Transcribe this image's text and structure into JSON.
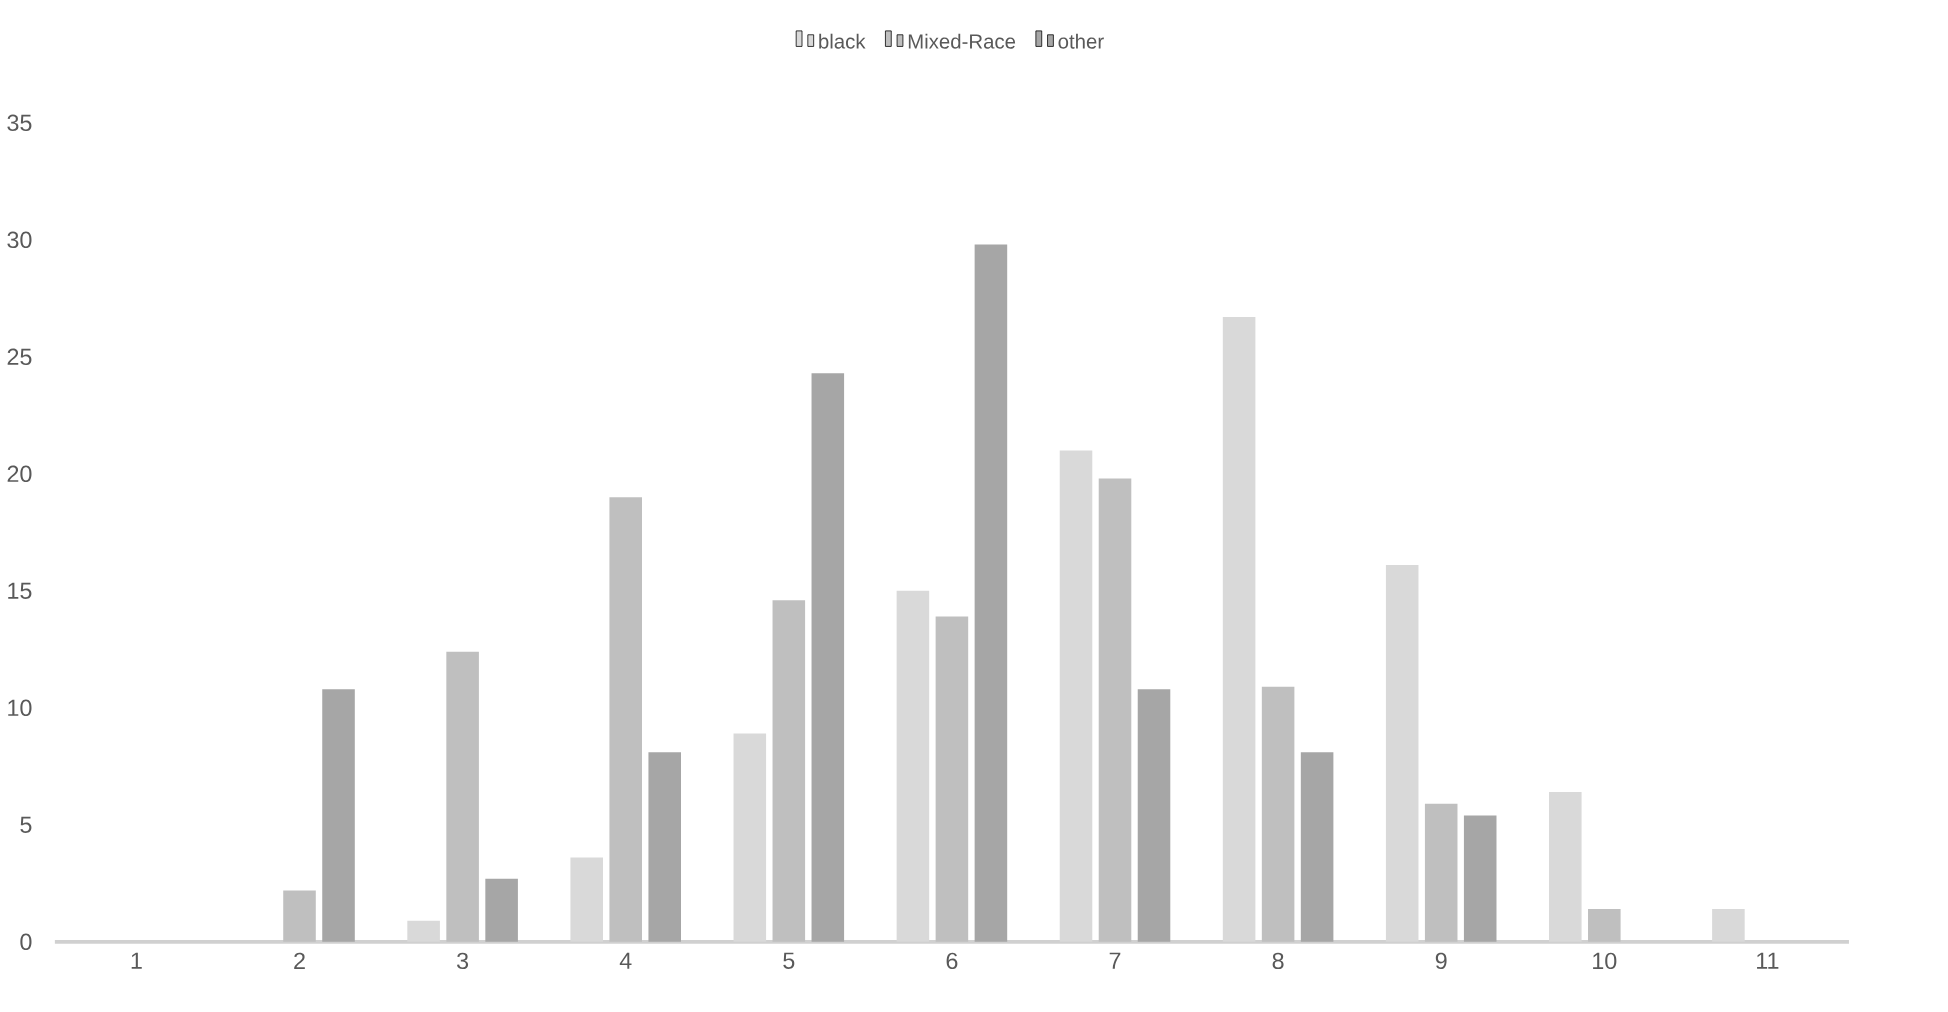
{
  "chart_data": {
    "type": "bar",
    "categories": [
      "1",
      "2",
      "3",
      "4",
      "5",
      "6",
      "7",
      "8",
      "9",
      "10",
      "11"
    ],
    "series": [
      {
        "name": "black",
        "color": "#d9d9d9",
        "values": [
          0,
          0,
          0.9,
          3.6,
          8.9,
          15.0,
          21.0,
          26.7,
          16.1,
          6.4,
          1.4
        ]
      },
      {
        "name": "Mixed-Race",
        "color": "#bfbfbf",
        "values": [
          0,
          2.2,
          12.4,
          19.0,
          14.6,
          13.9,
          19.8,
          10.9,
          5.9,
          1.4,
          0
        ]
      },
      {
        "name": "other",
        "color": "#a6a6a6",
        "values": [
          0,
          10.8,
          2.7,
          8.1,
          24.3,
          29.8,
          10.8,
          8.1,
          5.4,
          0,
          0
        ]
      }
    ],
    "ylim": [
      0,
      35
    ],
    "yticks": [
      0,
      5,
      10,
      15,
      20,
      25,
      30,
      35
    ],
    "legend": "top"
  }
}
